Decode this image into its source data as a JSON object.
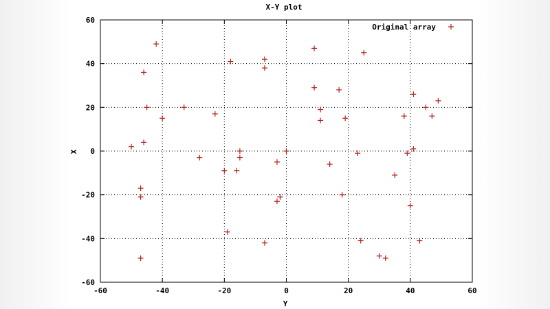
{
  "chart_data": {
    "type": "scatter",
    "title": "X-Y plot",
    "xlabel": "Y",
    "ylabel": "X",
    "xlim": [
      -60,
      60
    ],
    "ylim": [
      -60,
      60
    ],
    "xticks": [
      -60,
      -40,
      -20,
      0,
      20,
      40,
      60
    ],
    "yticks": [
      -60,
      -40,
      -20,
      0,
      20,
      40,
      60
    ],
    "grid": true,
    "legend_position": "top-right",
    "series": [
      {
        "name": "Original array",
        "color": "#b22222",
        "marker": "plus",
        "points": [
          [
            -42,
            49
          ],
          [
            -46,
            36
          ],
          [
            -45,
            20
          ],
          [
            -40,
            15
          ],
          [
            -50,
            2
          ],
          [
            -46,
            4
          ],
          [
            -47,
            -17
          ],
          [
            -47,
            -21
          ],
          [
            -47,
            -49
          ],
          [
            -33,
            20
          ],
          [
            -28,
            -3
          ],
          [
            -23,
            17
          ],
          [
            -18,
            41
          ],
          [
            -20,
            -9
          ],
          [
            -19,
            -37
          ],
          [
            -16,
            -9
          ],
          [
            -15,
            -3
          ],
          [
            -15,
            0
          ],
          [
            -7,
            42
          ],
          [
            -7,
            38
          ],
          [
            -7,
            -42
          ],
          [
            -3,
            -5
          ],
          [
            -3,
            -23
          ],
          [
            -2,
            -21
          ],
          [
            0,
            0
          ],
          [
            9,
            47
          ],
          [
            9,
            29
          ],
          [
            11,
            19
          ],
          [
            11,
            14
          ],
          [
            14,
            -6
          ],
          [
            17,
            28
          ],
          [
            18,
            -20
          ],
          [
            19,
            15
          ],
          [
            23,
            -1
          ],
          [
            24,
            -41
          ],
          [
            25,
            45
          ],
          [
            30,
            -48
          ],
          [
            32,
            -49
          ],
          [
            35,
            -11
          ],
          [
            38,
            16
          ],
          [
            39,
            -1
          ],
          [
            40,
            -25
          ],
          [
            41,
            26
          ],
          [
            41,
            1
          ],
          [
            43,
            -41
          ],
          [
            45,
            20
          ],
          [
            47,
            16
          ],
          [
            49,
            23
          ]
        ]
      }
    ]
  }
}
